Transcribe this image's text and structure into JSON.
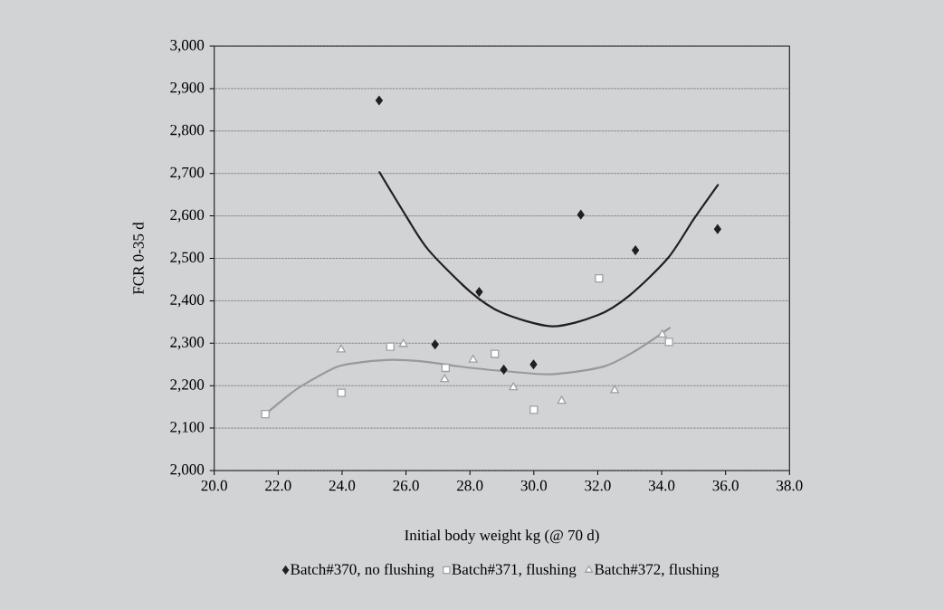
{
  "chart_data": {
    "type": "scatter",
    "xlabel": "Initial body weight kg (@ 70 d)",
    "ylabel": "FCR 0-35 d",
    "xlim": [
      20,
      38
    ],
    "ylim": [
      2000,
      3000
    ],
    "xticks": [
      {
        "value": 20,
        "label": "20.0"
      },
      {
        "value": 22,
        "label": "22.0"
      },
      {
        "value": 24,
        "label": "24.0"
      },
      {
        "value": 26,
        "label": "26.0"
      },
      {
        "value": 28,
        "label": "28.0"
      },
      {
        "value": 30,
        "label": "30.0"
      },
      {
        "value": 32,
        "label": "32.0"
      },
      {
        "value": 34,
        "label": "34.0"
      },
      {
        "value": 36,
        "label": "36.0"
      },
      {
        "value": 38,
        "label": "38.0"
      }
    ],
    "yticks": [
      {
        "value": 2000,
        "label": "2,000"
      },
      {
        "value": 2100,
        "label": "2,100"
      },
      {
        "value": 2200,
        "label": "2,200"
      },
      {
        "value": 2300,
        "label": "2,300"
      },
      {
        "value": 2400,
        "label": "2,400"
      },
      {
        "value": 2500,
        "label": "2,500"
      },
      {
        "value": 2600,
        "label": "2,600"
      },
      {
        "value": 2700,
        "label": "2,700"
      },
      {
        "value": 2800,
        "label": "2,800"
      },
      {
        "value": 2900,
        "label": "2,900"
      },
      {
        "value": 3000,
        "label": "3,000"
      }
    ],
    "grid": "y",
    "legend": "bottom",
    "series": [
      {
        "name": "Batch#370, no flushing",
        "marker": "diamond",
        "color": "#231f20",
        "x": [
          25.16,
          26.91,
          28.29,
          29.06,
          29.99,
          31.47,
          33.18,
          35.75
        ],
        "values": [
          2872,
          2297,
          2421,
          2238,
          2250,
          2603,
          2519,
          2569
        ]
      },
      {
        "name": "Batch#371, flushing",
        "marker": "square",
        "color": "#a0a0a0",
        "x": [
          21.6,
          23.98,
          25.51,
          27.24,
          28.78,
          30.0,
          32.04,
          34.23
        ],
        "values": [
          2133,
          2183,
          2292,
          2242,
          2275,
          2143,
          2453,
          2303
        ]
      },
      {
        "name": "Batch#372, flushing",
        "marker": "triangle",
        "color": "#a0a0a0",
        "x": [
          23.97,
          25.92,
          27.21,
          28.1,
          29.36,
          30.87,
          32.53,
          34.02
        ],
        "values": [
          2285,
          2298,
          2215,
          2261,
          2196,
          2164,
          2189,
          2320
        ]
      },
      {
        "type": "line",
        "marker": "none",
        "line_style": "solid",
        "color": "#231f20",
        "x": [
          25.17,
          26.0,
          26.7,
          28.0,
          29.0,
          30.57,
          32.0,
          33.0,
          34.2,
          35.0,
          35.76
        ],
        "values": [
          2703,
          2600,
          2520,
          2422,
          2372,
          2340,
          2366,
          2413,
          2501,
          2592,
          2673
        ]
      },
      {
        "type": "line",
        "marker": "none",
        "line_style": "solid",
        "color": "#999999",
        "x": [
          21.6,
          22.2,
          22.73,
          23.87,
          24.7,
          25.57,
          26.5,
          28.02,
          29.3,
          30.57,
          32.18,
          33.2,
          34.25
        ],
        "values": [
          2133,
          2170,
          2199,
          2245,
          2256,
          2261,
          2257,
          2242,
          2233,
          2227,
          2245,
          2283,
          2336
        ]
      }
    ]
  }
}
